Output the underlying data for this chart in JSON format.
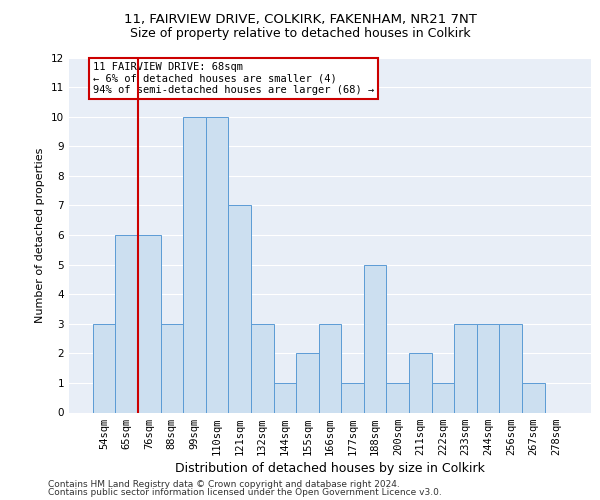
{
  "title1": "11, FAIRVIEW DRIVE, COLKIRK, FAKENHAM, NR21 7NT",
  "title2": "Size of property relative to detached houses in Colkirk",
  "xlabel": "Distribution of detached houses by size in Colkirk",
  "ylabel": "Number of detached properties",
  "categories": [
    "54sqm",
    "65sqm",
    "76sqm",
    "88sqm",
    "99sqm",
    "110sqm",
    "121sqm",
    "132sqm",
    "144sqm",
    "155sqm",
    "166sqm",
    "177sqm",
    "188sqm",
    "200sqm",
    "211sqm",
    "222sqm",
    "233sqm",
    "244sqm",
    "256sqm",
    "267sqm",
    "278sqm"
  ],
  "values": [
    3,
    6,
    6,
    3,
    10,
    10,
    7,
    3,
    1,
    2,
    3,
    1,
    5,
    1,
    2,
    1,
    3,
    3,
    3,
    1,
    0
  ],
  "bar_color": "#ccdff0",
  "bar_edge_color": "#5b9bd5",
  "annotation_text": "11 FAIRVIEW DRIVE: 68sqm\n← 6% of detached houses are smaller (4)\n94% of semi-detached houses are larger (68) →",
  "annotation_box_color": "#ffffff",
  "annotation_box_edge_color": "#cc0000",
  "vline_color": "#cc0000",
  "vline_x": 1.5,
  "ylim": [
    0,
    12
  ],
  "yticks": [
    0,
    1,
    2,
    3,
    4,
    5,
    6,
    7,
    8,
    9,
    10,
    11,
    12
  ],
  "footer1": "Contains HM Land Registry data © Crown copyright and database right 2024.",
  "footer2": "Contains public sector information licensed under the Open Government Licence v3.0.",
  "bg_color": "#e8eef7",
  "grid_color": "#ffffff",
  "title1_fontsize": 9.5,
  "title2_fontsize": 9,
  "xlabel_fontsize": 9,
  "ylabel_fontsize": 8,
  "tick_fontsize": 7.5,
  "ann_fontsize": 7.5,
  "footer_fontsize": 6.5
}
